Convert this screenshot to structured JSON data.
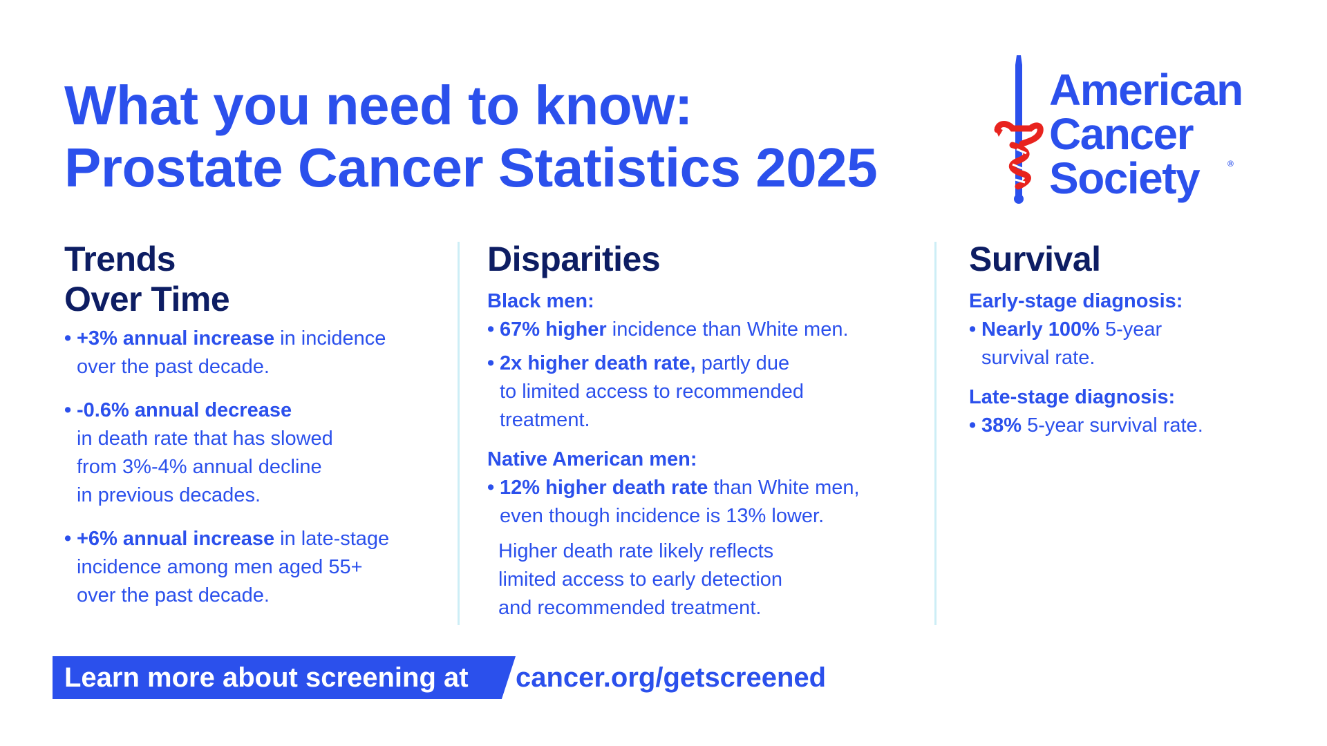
{
  "title": {
    "line1": "What you need to know:",
    "line2": "Prostate Cancer Statistics 2025"
  },
  "logo": {
    "line1": "American",
    "line2": "Cancer",
    "line3": "Society",
    "registered": "®"
  },
  "trends": {
    "heading_line1": "Trends",
    "heading_line2": "Over Time",
    "b1_bold": "+3% annual increase",
    "b1_rest": " in incidence",
    "b1_line2": "over the past decade.",
    "b2_bold": "-0.6% annual decrease",
    "b2_line2": "in death rate that has slowed",
    "b2_line3": "from 3%-4% annual decline",
    "b2_line4": "in previous decades.",
    "b3_bold": "+6% annual increase",
    "b3_rest": " in late-stage",
    "b3_line2": "incidence among men aged 55+",
    "b3_line3": "over the past decade."
  },
  "disparities": {
    "heading": "Disparities",
    "black_label": "Black men:",
    "b1_bold": "67% higher",
    "b1_rest": " incidence than White men.",
    "b2_bold": "2x higher death rate,",
    "b2_rest": " partly due",
    "b2_line2": "to limited access to recommended",
    "b2_line3": "treatment.",
    "native_label": "Native American men:",
    "b3_bold": "12% higher death rate",
    "b3_rest": " than White men,",
    "b3_line2": "even though incidence is 13% lower.",
    "note_line1": "Higher death rate likely reflects",
    "note_line2": "limited access to early detection",
    "note_line3": "and recommended treatment."
  },
  "survival": {
    "heading": "Survival",
    "early_label": "Early-stage diagnosis:",
    "b1_bold": "Nearly 100%",
    "b1_rest": " 5-year",
    "b1_line2": "survival rate.",
    "late_label": "Late-stage diagnosis:",
    "b2_bold": "38%",
    "b2_rest": " 5-year survival rate."
  },
  "bullet_symbol": "•",
  "cta": {
    "label": "Learn more about screening at",
    "link": "cancer.org/getscreened"
  },
  "colors": {
    "brand_blue": "#2b50ec",
    "navy": "#0d1d63",
    "divider": "#cdeef6",
    "logo_red": "#e8231e"
  },
  "icons": [
    "sword-logo-icon"
  ]
}
